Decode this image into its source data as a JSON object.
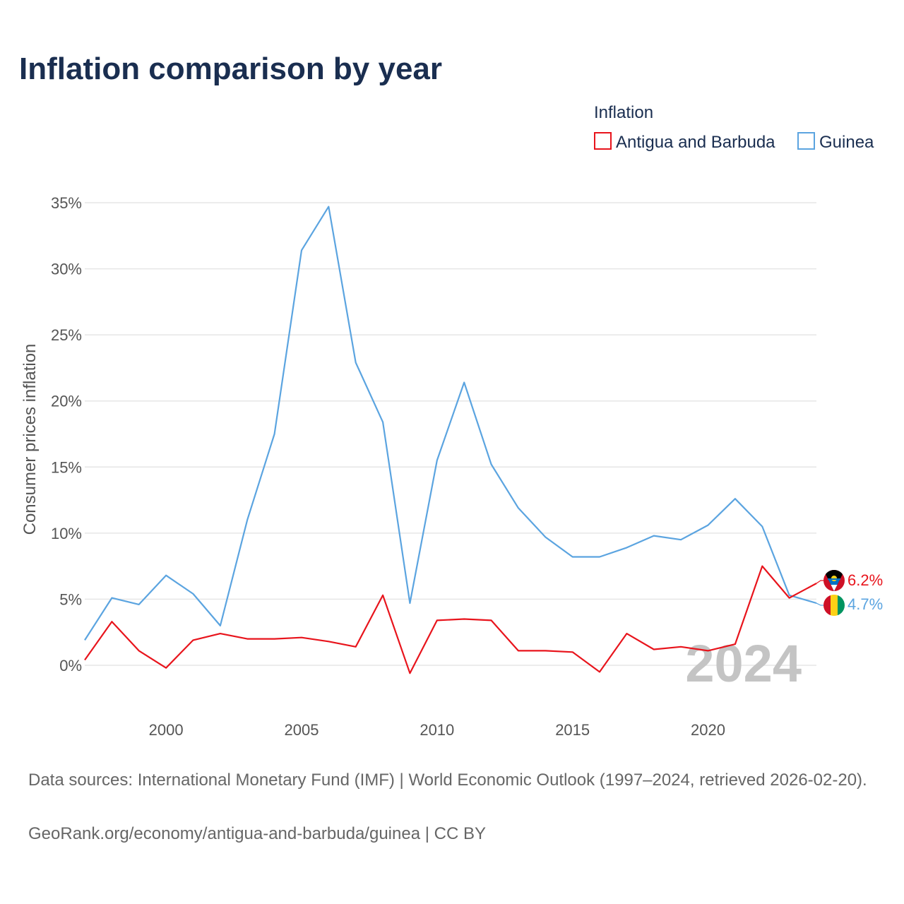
{
  "title": "Inflation comparison by year",
  "legend": {
    "title": "Inflation",
    "items": [
      {
        "label": "Antigua and Barbuda",
        "color": "#e8141c"
      },
      {
        "label": "Guinea",
        "color": "#5ba4e0"
      }
    ]
  },
  "watermark_year": "2024",
  "chart_data": {
    "type": "line",
    "title": "Inflation comparison by year",
    "xlabel": "",
    "ylabel": "Consumer prices inflation",
    "x": [
      1997,
      1998,
      1999,
      2000,
      2001,
      2002,
      2003,
      2004,
      2005,
      2006,
      2007,
      2008,
      2009,
      2010,
      2011,
      2012,
      2013,
      2014,
      2015,
      2016,
      2017,
      2018,
      2019,
      2020,
      2021,
      2022,
      2023,
      2024
    ],
    "xlim": [
      1997,
      2024
    ],
    "ylim": [
      -5,
      35
    ],
    "x_ticks": [
      2000,
      2005,
      2010,
      2015,
      2020
    ],
    "y_ticks": [
      0,
      5,
      10,
      15,
      20,
      25,
      30,
      35
    ],
    "y_tick_labels": [
      "0%",
      "5%",
      "10%",
      "15%",
      "20%",
      "25%",
      "30%",
      "35%"
    ],
    "grid": true,
    "series": [
      {
        "name": "Antigua and Barbuda",
        "color": "#e8141c",
        "values": [
          0.4,
          3.3,
          1.1,
          -0.2,
          1.9,
          2.4,
          2.0,
          2.0,
          2.1,
          1.8,
          1.4,
          5.3,
          -0.6,
          3.4,
          3.5,
          3.4,
          1.1,
          1.1,
          1.0,
          -0.5,
          2.4,
          1.2,
          1.4,
          1.1,
          1.6,
          7.5,
          5.1,
          6.2
        ],
        "end_label": "6.2%"
      },
      {
        "name": "Guinea",
        "color": "#5ba4e0",
        "values": [
          1.9,
          5.1,
          4.6,
          6.8,
          5.4,
          3.0,
          11.0,
          17.5,
          31.4,
          34.7,
          22.9,
          18.4,
          4.7,
          15.5,
          21.4,
          15.2,
          11.9,
          9.7,
          8.2,
          8.2,
          8.9,
          9.8,
          9.5,
          10.6,
          12.6,
          10.5,
          5.3,
          4.7
        ],
        "end_label": "4.7%"
      }
    ]
  },
  "footer": {
    "sources": "Data sources: International Monetary Fund (IMF) | World Economic Outlook (1997–2024, retrieved 2026-02-20).",
    "credit": "GeoRank.org/economy/antigua-and-barbuda/guinea | CC BY"
  }
}
